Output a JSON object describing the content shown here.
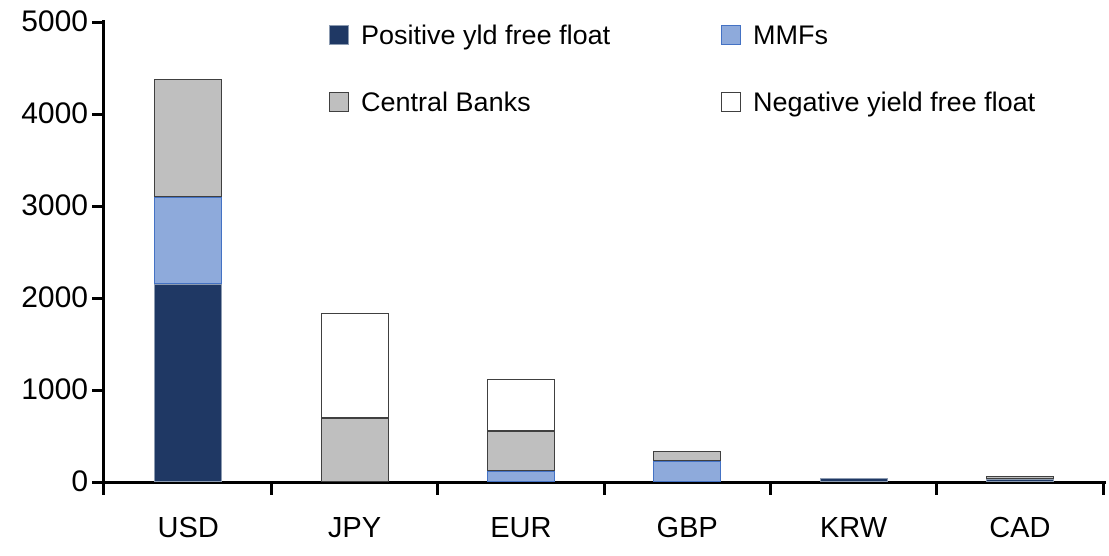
{
  "chart_data": {
    "type": "bar",
    "stacked": true,
    "title": "",
    "xlabel": "",
    "ylabel": "",
    "categories": [
      "USD",
      "JPY",
      "EUR",
      "GBP",
      "KRW",
      "CAD"
    ],
    "series": [
      {
        "name": "Positive yld free float",
        "color": "#1F3864",
        "border": "#8C9BB1",
        "values": [
          2150,
          0,
          0,
          0,
          40,
          30
        ]
      },
      {
        "name": "MMFs",
        "color": "#8EAADB",
        "border": "#4472C4",
        "values": [
          950,
          0,
          120,
          230,
          0,
          0
        ]
      },
      {
        "name": "Central Banks",
        "color": "#BFBFBF",
        "border": "#404040",
        "values": [
          1280,
          700,
          430,
          110,
          0,
          30
        ]
      },
      {
        "name": "Negative yield free float",
        "color": "#FFFFFF",
        "border": "#404040",
        "values": [
          0,
          1140,
          570,
          0,
          0,
          0
        ]
      }
    ],
    "totals": [
      4380,
      1840,
      1120,
      340,
      40,
      60
    ],
    "ylim": [
      0,
      5000
    ],
    "yticks": [
      0,
      1000,
      2000,
      3000,
      4000,
      5000
    ],
    "grid": false,
    "legend_position": "top-inside",
    "axis_color": "#000000",
    "background_color": "#FFFFFF"
  }
}
